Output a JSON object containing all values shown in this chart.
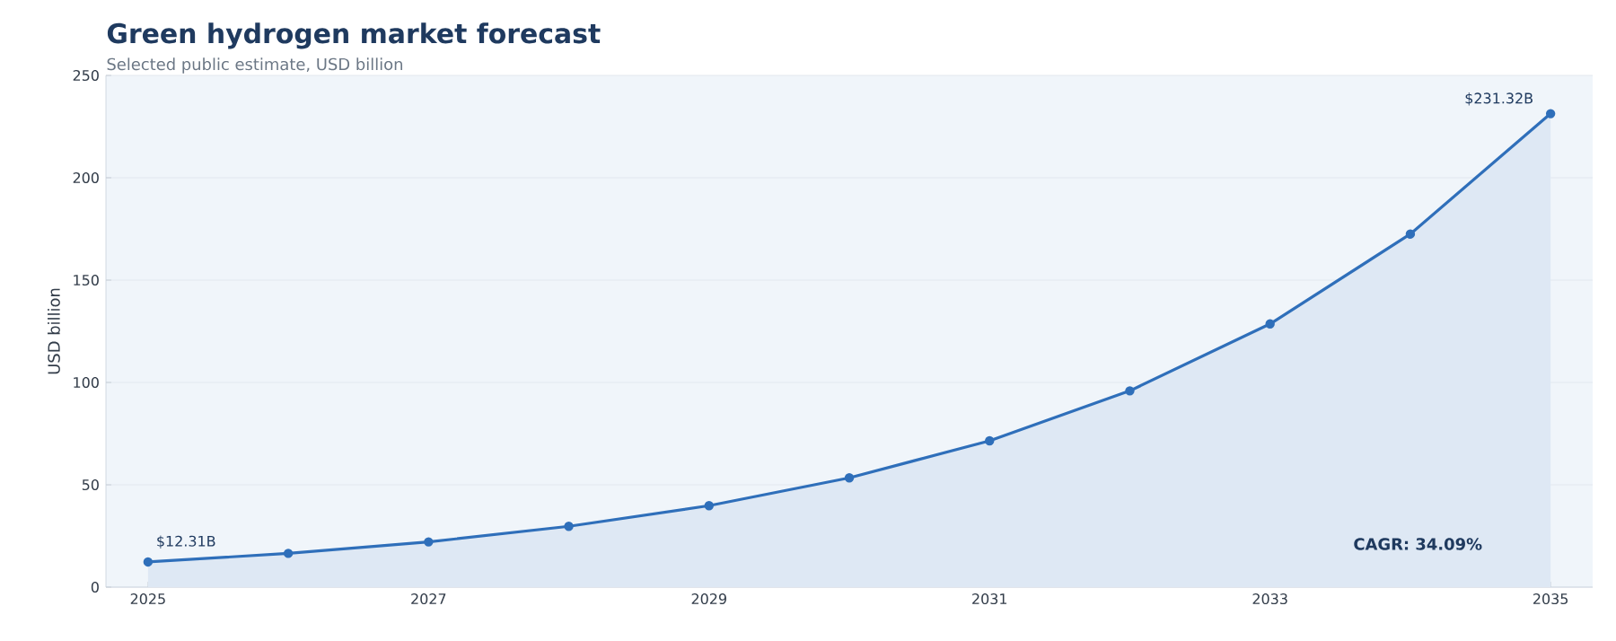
{
  "chart_data": {
    "type": "area",
    "title": "Green hydrogen market forecast",
    "subtitle": "Selected public estimate, USD billion",
    "ylabel": "USD billion",
    "x": [
      2025,
      2026,
      2027,
      2028,
      2029,
      2030,
      2031,
      2032,
      2033,
      2034,
      2035
    ],
    "series": [
      {
        "color": "#2f6fba",
        "values": [
          12.31,
          16.5,
          22.1,
          29.7,
          39.8,
          53.4,
          71.5,
          95.9,
          128.6,
          172.5,
          231.32
        ]
      }
    ],
    "xlim": [
      2024.7,
      2035.3
    ],
    "ylim": [
      0,
      250
    ],
    "xticks": [
      2025,
      2027,
      2029,
      2031,
      2033,
      2035
    ],
    "yticks": [
      0,
      50,
      100,
      150,
      200,
      250
    ],
    "grid": "y",
    "marker": "circle",
    "line_style": "solid",
    "annotations": [
      {
        "text": "$12.31B",
        "x": 2025,
        "y": 12.31
      },
      {
        "text": "$231.32B",
        "x": 2035,
        "y": 231.32
      },
      "CAGR: 34.09%"
    ]
  }
}
